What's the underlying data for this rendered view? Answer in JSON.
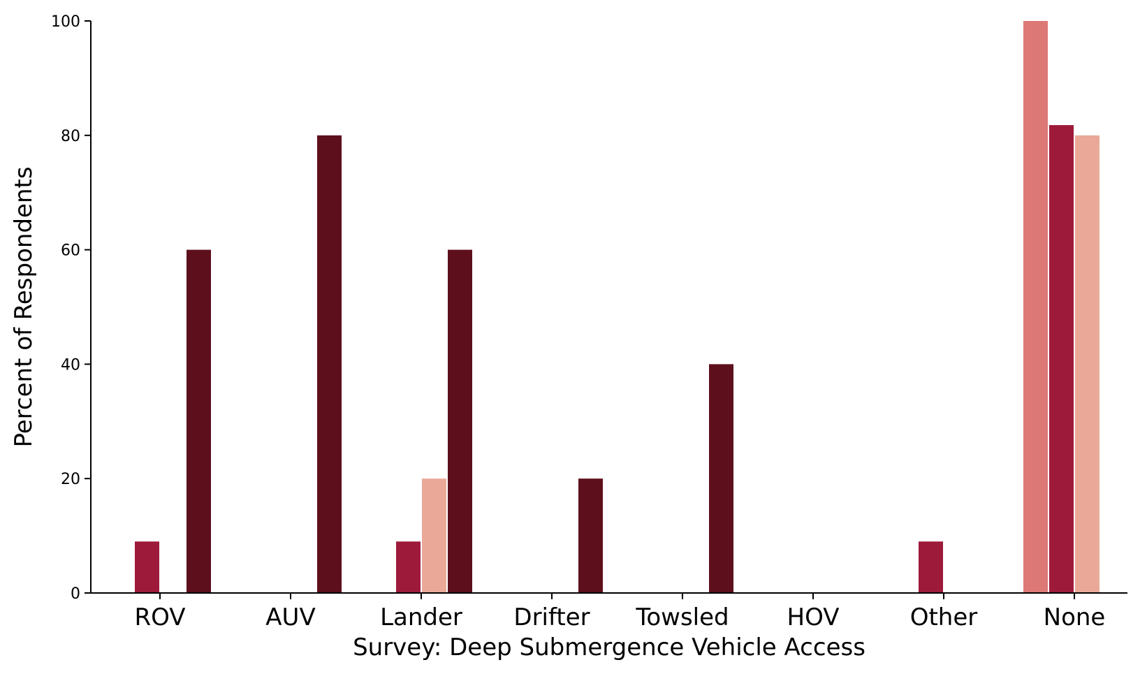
{
  "chart_data": {
    "type": "bar",
    "title": "",
    "xlabel": "Survey: Deep Submergence Vehicle Access",
    "ylabel": "Percent of Respondents",
    "categories": [
      "ROV",
      "AUV",
      "Lander",
      "Drifter",
      "Towsled",
      "HOV",
      "Other",
      "None"
    ],
    "ylim": [
      0,
      100
    ],
    "yticks": [
      "0",
      "20",
      "40",
      "60",
      "80",
      "100"
    ],
    "grid": false,
    "legend": "none",
    "series": [
      {
        "color": "#dc7977",
        "values": [
          0,
          0,
          0,
          0,
          0,
          0,
          0,
          100
        ]
      },
      {
        "color": "#9e1a3a",
        "values": [
          9,
          0,
          9,
          0,
          0,
          0,
          9,
          81.8
        ]
      },
      {
        "color": "#eaa899",
        "values": [
          0,
          0,
          20,
          0,
          0,
          0,
          0,
          80
        ]
      },
      {
        "color": "#5e0f1c",
        "values": [
          60,
          80,
          60,
          20,
          40,
          0,
          0,
          0
        ]
      }
    ]
  }
}
